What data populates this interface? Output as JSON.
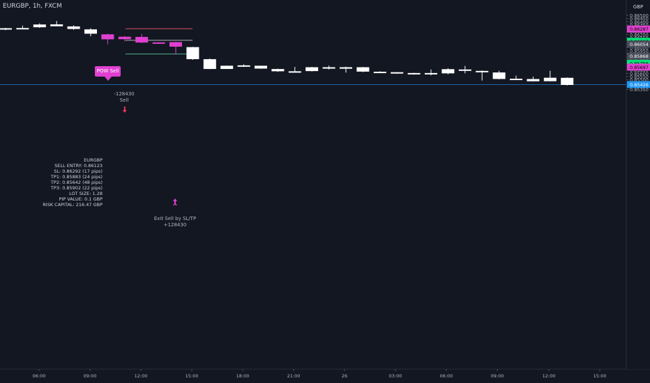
{
  "symbol": "EURGBP, 1h, FXCM",
  "currency": "GBP",
  "chart_data": {
    "type": "candlestick",
    "time_labels": [
      "06:00",
      "09:00",
      "12:00",
      "15:00",
      "18:00",
      "21:00",
      "26",
      "03:00",
      "06:00",
      "09:00",
      "12:00",
      "15:00"
    ],
    "ylim": [
      0.8533,
      0.8656
    ],
    "y_ticks": [
      "0.86500",
      "0.86450",
      "0.86400",
      "0.86350",
      "0.86300",
      "0.86250",
      "0.86200",
      "0.86150",
      "0.86100",
      "0.86054",
      "0.86000",
      "0.85950",
      "0.85900",
      "0.85850",
      "0.85800",
      "0.85750",
      "0.85700",
      "0.85650",
      "0.85600",
      "0.85550",
      "0.85500",
      "0.85450",
      "0.85400",
      "0.85350"
    ],
    "candles": [
      {
        "o": 0.863,
        "h": 0.86305,
        "l": 0.8627,
        "c": 0.863,
        "color": "white"
      },
      {
        "o": 0.86303,
        "h": 0.8634,
        "l": 0.86295,
        "c": 0.863,
        "color": "white"
      },
      {
        "o": 0.86315,
        "h": 0.86375,
        "l": 0.86305,
        "c": 0.86358,
        "color": "white"
      },
      {
        "o": 0.8636,
        "h": 0.86412,
        "l": 0.86342,
        "c": 0.8633,
        "color": "white"
      },
      {
        "o": 0.86328,
        "h": 0.86345,
        "l": 0.86275,
        "c": 0.86288,
        "color": "white"
      },
      {
        "o": 0.86282,
        "h": 0.863,
        "l": 0.86175,
        "c": 0.86215,
        "color": "white"
      },
      {
        "o": 0.86205,
        "h": 0.86215,
        "l": 0.8605,
        "c": 0.86128,
        "color": "magenta"
      },
      {
        "o": 0.86168,
        "h": 0.86178,
        "l": 0.86095,
        "c": 0.8613,
        "color": "magenta"
      },
      {
        "o": 0.86165,
        "h": 0.8621,
        "l": 0.8607,
        "c": 0.86078,
        "color": "magenta"
      },
      {
        "o": 0.8608,
        "h": 0.86085,
        "l": 0.8607,
        "c": 0.8608,
        "color": "magenta"
      },
      {
        "o": 0.86085,
        "h": 0.8609,
        "l": 0.85892,
        "c": 0.86014,
        "color": "magenta"
      },
      {
        "o": 0.86007,
        "h": 0.8601,
        "l": 0.8581,
        "c": 0.8582,
        "color": "white"
      },
      {
        "o": 0.8582,
        "h": 0.8583,
        "l": 0.85665,
        "c": 0.85668,
        "color": "white"
      },
      {
        "o": 0.85718,
        "h": 0.8572,
        "l": 0.8567,
        "c": 0.85668,
        "color": "white"
      },
      {
        "o": 0.85724,
        "h": 0.8574,
        "l": 0.857,
        "c": 0.85722,
        "color": "white"
      },
      {
        "o": 0.85718,
        "h": 0.8572,
        "l": 0.8567,
        "c": 0.85674,
        "color": "white"
      },
      {
        "o": 0.85667,
        "h": 0.85672,
        "l": 0.85622,
        "c": 0.85632,
        "color": "white"
      },
      {
        "o": 0.85632,
        "h": 0.857,
        "l": 0.85627,
        "c": 0.8563,
        "color": "white"
      },
      {
        "o": 0.85695,
        "h": 0.857,
        "l": 0.85628,
        "c": 0.85635,
        "color": "white"
      },
      {
        "o": 0.85695,
        "h": 0.8572,
        "l": 0.8566,
        "c": 0.85673,
        "color": "white"
      },
      {
        "o": 0.85695,
        "h": 0.85703,
        "l": 0.85612,
        "c": 0.85672,
        "color": "white"
      },
      {
        "o": 0.85695,
        "h": 0.857,
        "l": 0.8562,
        "c": 0.85627,
        "color": "white"
      },
      {
        "o": 0.85625,
        "h": 0.85632,
        "l": 0.8562,
        "c": 0.8562,
        "color": "white"
      },
      {
        "o": 0.85618,
        "h": 0.8562,
        "l": 0.85595,
        "c": 0.856,
        "color": "white"
      },
      {
        "o": 0.85605,
        "h": 0.8561,
        "l": 0.8558,
        "c": 0.856,
        "color": "white"
      },
      {
        "o": 0.85605,
        "h": 0.8566,
        "l": 0.8557,
        "c": 0.856,
        "color": "white"
      },
      {
        "o": 0.85665,
        "h": 0.8568,
        "l": 0.85585,
        "c": 0.856,
        "color": "white"
      },
      {
        "o": 0.8566,
        "h": 0.85715,
        "l": 0.856,
        "c": 0.85645,
        "color": "white"
      },
      {
        "o": 0.85638,
        "h": 0.85645,
        "l": 0.85488,
        "c": 0.85624,
        "color": "white"
      },
      {
        "o": 0.85614,
        "h": 0.8564,
        "l": 0.85508,
        "c": 0.85513,
        "color": "white"
      },
      {
        "o": 0.85517,
        "h": 0.85565,
        "l": 0.8551,
        "c": 0.85512,
        "color": "white"
      },
      {
        "o": 0.85512,
        "h": 0.8555,
        "l": 0.85474,
        "c": 0.85477,
        "color": "white"
      },
      {
        "o": 0.85532,
        "h": 0.8564,
        "l": 0.85475,
        "c": 0.85478,
        "color": "white"
      },
      {
        "o": 0.85531,
        "h": 0.85536,
        "l": 0.85413,
        "c": 0.8542,
        "color": "white"
      }
    ],
    "price_labels": [
      {
        "value": 0.86287,
        "text": "0.86287",
        "bg": "#e040d0",
        "fg": "#000000"
      },
      {
        "value": 0.86097,
        "text": "0.86097",
        "bg": "#00e676",
        "fg": "#000000"
      },
      {
        "value": 0.86054,
        "text": "0.86054",
        "bg": "#4a4e5a",
        "fg": "#ffffff"
      },
      {
        "value": 0.85868,
        "text": "0.85868",
        "bg": "#4a4e5a",
        "fg": "#ffffff"
      },
      {
        "value": 0.85756,
        "text": "0.85756",
        "bg": "#00e676",
        "fg": "#000000"
      },
      {
        "value": 0.85697,
        "text": "0.85697",
        "bg": "#e040d0",
        "fg": "#000000"
      },
      {
        "value": 0.85426,
        "text": "0.85426",
        "bg": "#2196f3",
        "fg": "#ffffff"
      }
    ],
    "level_lines": [
      {
        "value": 0.86292,
        "color": "#e0506a"
      },
      {
        "value": 0.86112,
        "color": "#b2b5be"
      },
      {
        "value": 0.859,
        "color": "#4caf8c"
      }
    ],
    "current_price": 0.85426,
    "colors": {
      "bg": "#131722",
      "up": "#ffffff",
      "signal": "#e040d0",
      "grid": "#1e222d"
    }
  },
  "signals": {
    "pow_label": "POW Sell",
    "entry_text_1": "-128430",
    "entry_text_2": "Sell",
    "exit_text_1": "Exit Sell by SL/TP",
    "exit_text_2": "+128430"
  },
  "stats": [
    "EURGBP",
    "SELL ENTRY: 0.86123",
    "SL: 0.86292 (17 pips)",
    "TP1: 0.85883 (24 pips)",
    "TP2: 0.85642 (48 pips)",
    "TP3: 0.85902 (22 pips)",
    "LOT SIZE: 1.28",
    "PIP VALUE: 0.1 GBP",
    "RISK CAPITAL: 216.47 GBP"
  ]
}
